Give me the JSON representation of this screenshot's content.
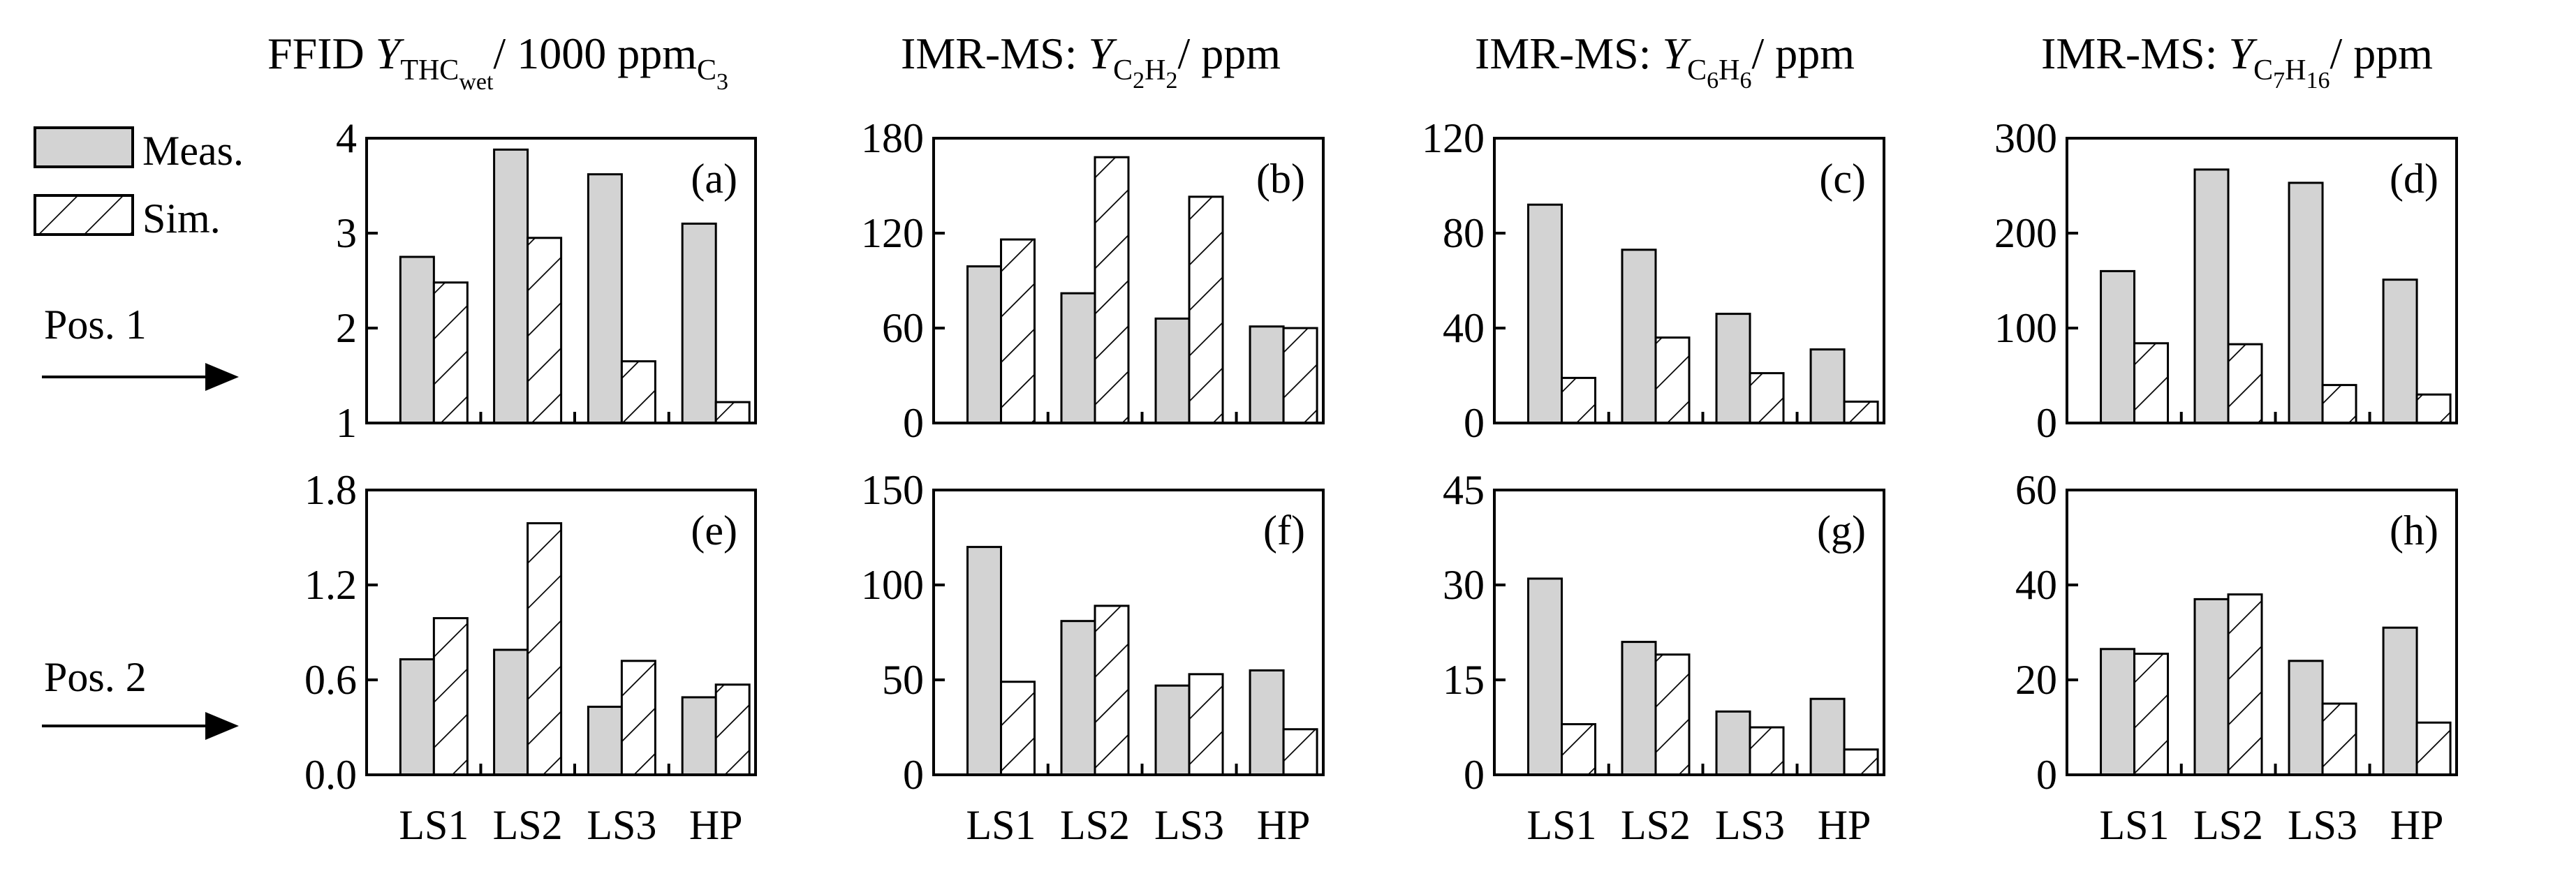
{
  "legend": {
    "meas_label": "Meas.",
    "sim_label": "Sim."
  },
  "positions": [
    {
      "label": "Pos. 1"
    },
    {
      "label": "Pos. 2"
    }
  ],
  "column_titles": [
    {
      "prefix": "FFID ",
      "var": "Y",
      "sub": "THC",
      "subsub": "wet",
      "suffix": "/ 1000 ppm",
      "suffix_sub": "C",
      "suffix_subsub": "3"
    },
    {
      "prefix": "IMR-MS: ",
      "var": "Y",
      "sub_parts": [
        "C",
        "2",
        "H",
        "2"
      ],
      "suffix": "/ ppm"
    },
    {
      "prefix": "IMR-MS: ",
      "var": "Y",
      "sub_parts": [
        "C",
        "6",
        "H",
        "6"
      ],
      "suffix": "/ ppm"
    },
    {
      "prefix": "IMR-MS: ",
      "var": "Y",
      "sub_parts": [
        "C",
        "7",
        "H",
        "16"
      ],
      "suffix": "/ ppm"
    }
  ],
  "colors": {
    "meas_fill": "#d3d3d3",
    "sim_fill": "#ffffff",
    "stroke": "#000000"
  },
  "chart_data": [
    {
      "type": "bar",
      "panel": "(a)",
      "categories": [
        "LS1",
        "LS2",
        "LS3",
        "HP"
      ],
      "ylim": [
        1,
        4
      ],
      "yticks": [
        1,
        2,
        3,
        4
      ],
      "tick_labels": [
        "1",
        "2",
        "3",
        "4"
      ],
      "series": [
        {
          "name": "Meas.",
          "values": [
            2.75,
            3.88,
            3.62,
            3.1
          ]
        },
        {
          "name": "Sim.",
          "values": [
            2.48,
            2.95,
            1.65,
            1.22
          ]
        }
      ]
    },
    {
      "type": "bar",
      "panel": "(b)",
      "categories": [
        "LS1",
        "LS2",
        "LS3",
        "HP"
      ],
      "ylim": [
        0,
        180
      ],
      "yticks": [
        0,
        60,
        120,
        180
      ],
      "tick_labels": [
        "0",
        "60",
        "120",
        "180"
      ],
      "series": [
        {
          "name": "Meas.",
          "values": [
            99,
            82,
            66,
            61
          ]
        },
        {
          "name": "Sim.",
          "values": [
            116,
            168,
            143,
            60
          ]
        }
      ]
    },
    {
      "type": "bar",
      "panel": "(c)",
      "categories": [
        "LS1",
        "LS2",
        "LS3",
        "HP"
      ],
      "ylim": [
        0,
        120
      ],
      "yticks": [
        0,
        40,
        80,
        120
      ],
      "tick_labels": [
        "0",
        "40",
        "80",
        "120"
      ],
      "series": [
        {
          "name": "Meas.",
          "values": [
            92,
            73,
            46,
            31
          ]
        },
        {
          "name": "Sim.",
          "values": [
            19,
            36,
            21,
            9
          ]
        }
      ]
    },
    {
      "type": "bar",
      "panel": "(d)",
      "categories": [
        "LS1",
        "LS2",
        "LS3",
        "HP"
      ],
      "ylim": [
        0,
        300
      ],
      "yticks": [
        0,
        100,
        200,
        300
      ],
      "tick_labels": [
        "0",
        "100",
        "200",
        "300"
      ],
      "series": [
        {
          "name": "Meas.",
          "values": [
            160,
            267,
            253,
            151
          ]
        },
        {
          "name": "Sim.",
          "values": [
            84,
            83,
            40,
            30
          ]
        }
      ]
    },
    {
      "type": "bar",
      "panel": "(e)",
      "categories": [
        "LS1",
        "LS2",
        "LS3",
        "HP"
      ],
      "ylim": [
        0,
        1.8
      ],
      "yticks": [
        0,
        0.6,
        1.2,
        1.8
      ],
      "tick_labels": [
        "0.0",
        "0.6",
        "1.2",
        "1.8"
      ],
      "series": [
        {
          "name": "Meas.",
          "values": [
            0.73,
            0.79,
            0.43,
            0.49
          ]
        },
        {
          "name": "Sim.",
          "values": [
            0.99,
            1.59,
            0.72,
            0.57
          ]
        }
      ]
    },
    {
      "type": "bar",
      "panel": "(f)",
      "categories": [
        "LS1",
        "LS2",
        "LS3",
        "HP"
      ],
      "ylim": [
        0,
        150
      ],
      "yticks": [
        0,
        50,
        100,
        150
      ],
      "tick_labels": [
        "0",
        "50",
        "100",
        "150"
      ],
      "series": [
        {
          "name": "Meas.",
          "values": [
            120,
            81,
            47,
            55
          ]
        },
        {
          "name": "Sim.",
          "values": [
            49,
            89,
            53,
            24
          ]
        }
      ]
    },
    {
      "type": "bar",
      "panel": "(g)",
      "categories": [
        "LS1",
        "LS2",
        "LS3",
        "HP"
      ],
      "ylim": [
        0,
        45
      ],
      "yticks": [
        0,
        15,
        30,
        45
      ],
      "tick_labels": [
        "0",
        "15",
        "30",
        "45"
      ],
      "series": [
        {
          "name": "Meas.",
          "values": [
            31,
            21,
            10,
            12
          ]
        },
        {
          "name": "Sim.",
          "values": [
            8,
            19,
            7.5,
            4
          ]
        }
      ]
    },
    {
      "type": "bar",
      "panel": "(h)",
      "categories": [
        "LS1",
        "LS2",
        "LS3",
        "HP"
      ],
      "ylim": [
        0,
        60
      ],
      "yticks": [
        0,
        20,
        40,
        60
      ],
      "tick_labels": [
        "0",
        "20",
        "40",
        "60"
      ],
      "series": [
        {
          "name": "Meas.",
          "values": [
            26.5,
            37,
            24,
            31
          ]
        },
        {
          "name": "Sim.",
          "values": [
            25.5,
            38,
            15,
            11
          ]
        }
      ]
    }
  ]
}
